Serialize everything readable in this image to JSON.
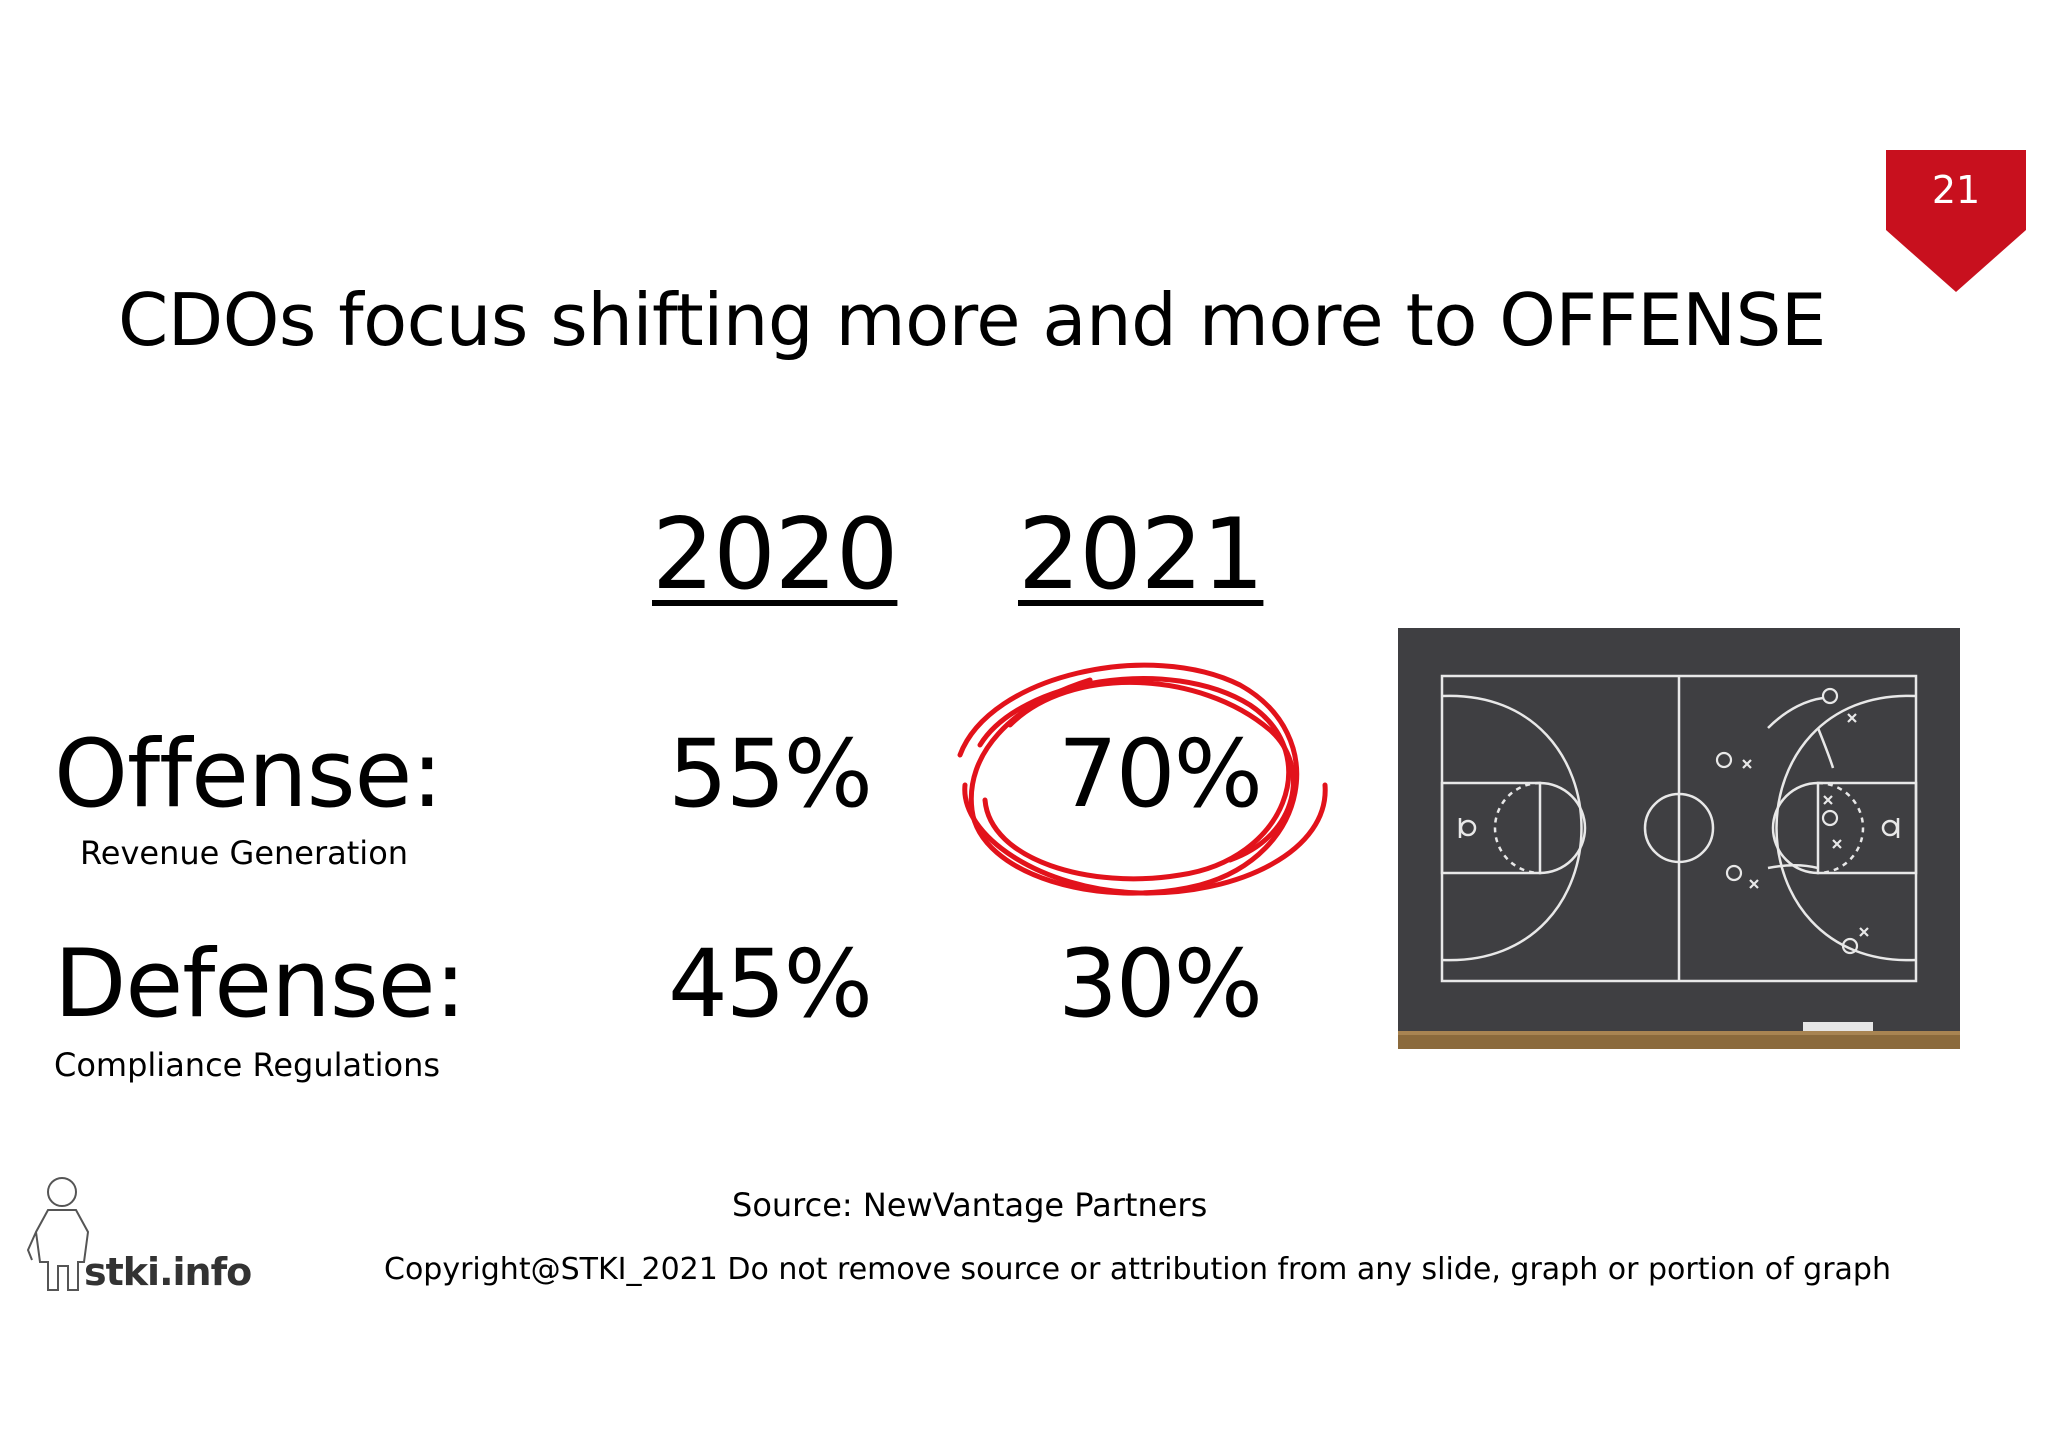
{
  "slide": {
    "number": "21",
    "title": "CDOs focus shifting more and more to OFFENSE",
    "accent_color": "#c8101e"
  },
  "years": [
    "2020",
    "2021"
  ],
  "rows": [
    {
      "label": "Offense:",
      "sublabel": "Revenue Generation",
      "values": [
        "55%",
        "70%"
      ]
    },
    {
      "label": "Defense:",
      "sublabel": "Compliance Regulations",
      "values": [
        "45%",
        "30%"
      ]
    }
  ],
  "highlight_color": "#e2121b",
  "image": {
    "icon": "basketball-playbook-chalkboard"
  },
  "source": "Source: NewVantage Partners",
  "copyright": "Copyright@STKI_2021 Do not remove source or attribution from any slide, graph or portion of graph",
  "logo": {
    "text": "stki.info"
  }
}
